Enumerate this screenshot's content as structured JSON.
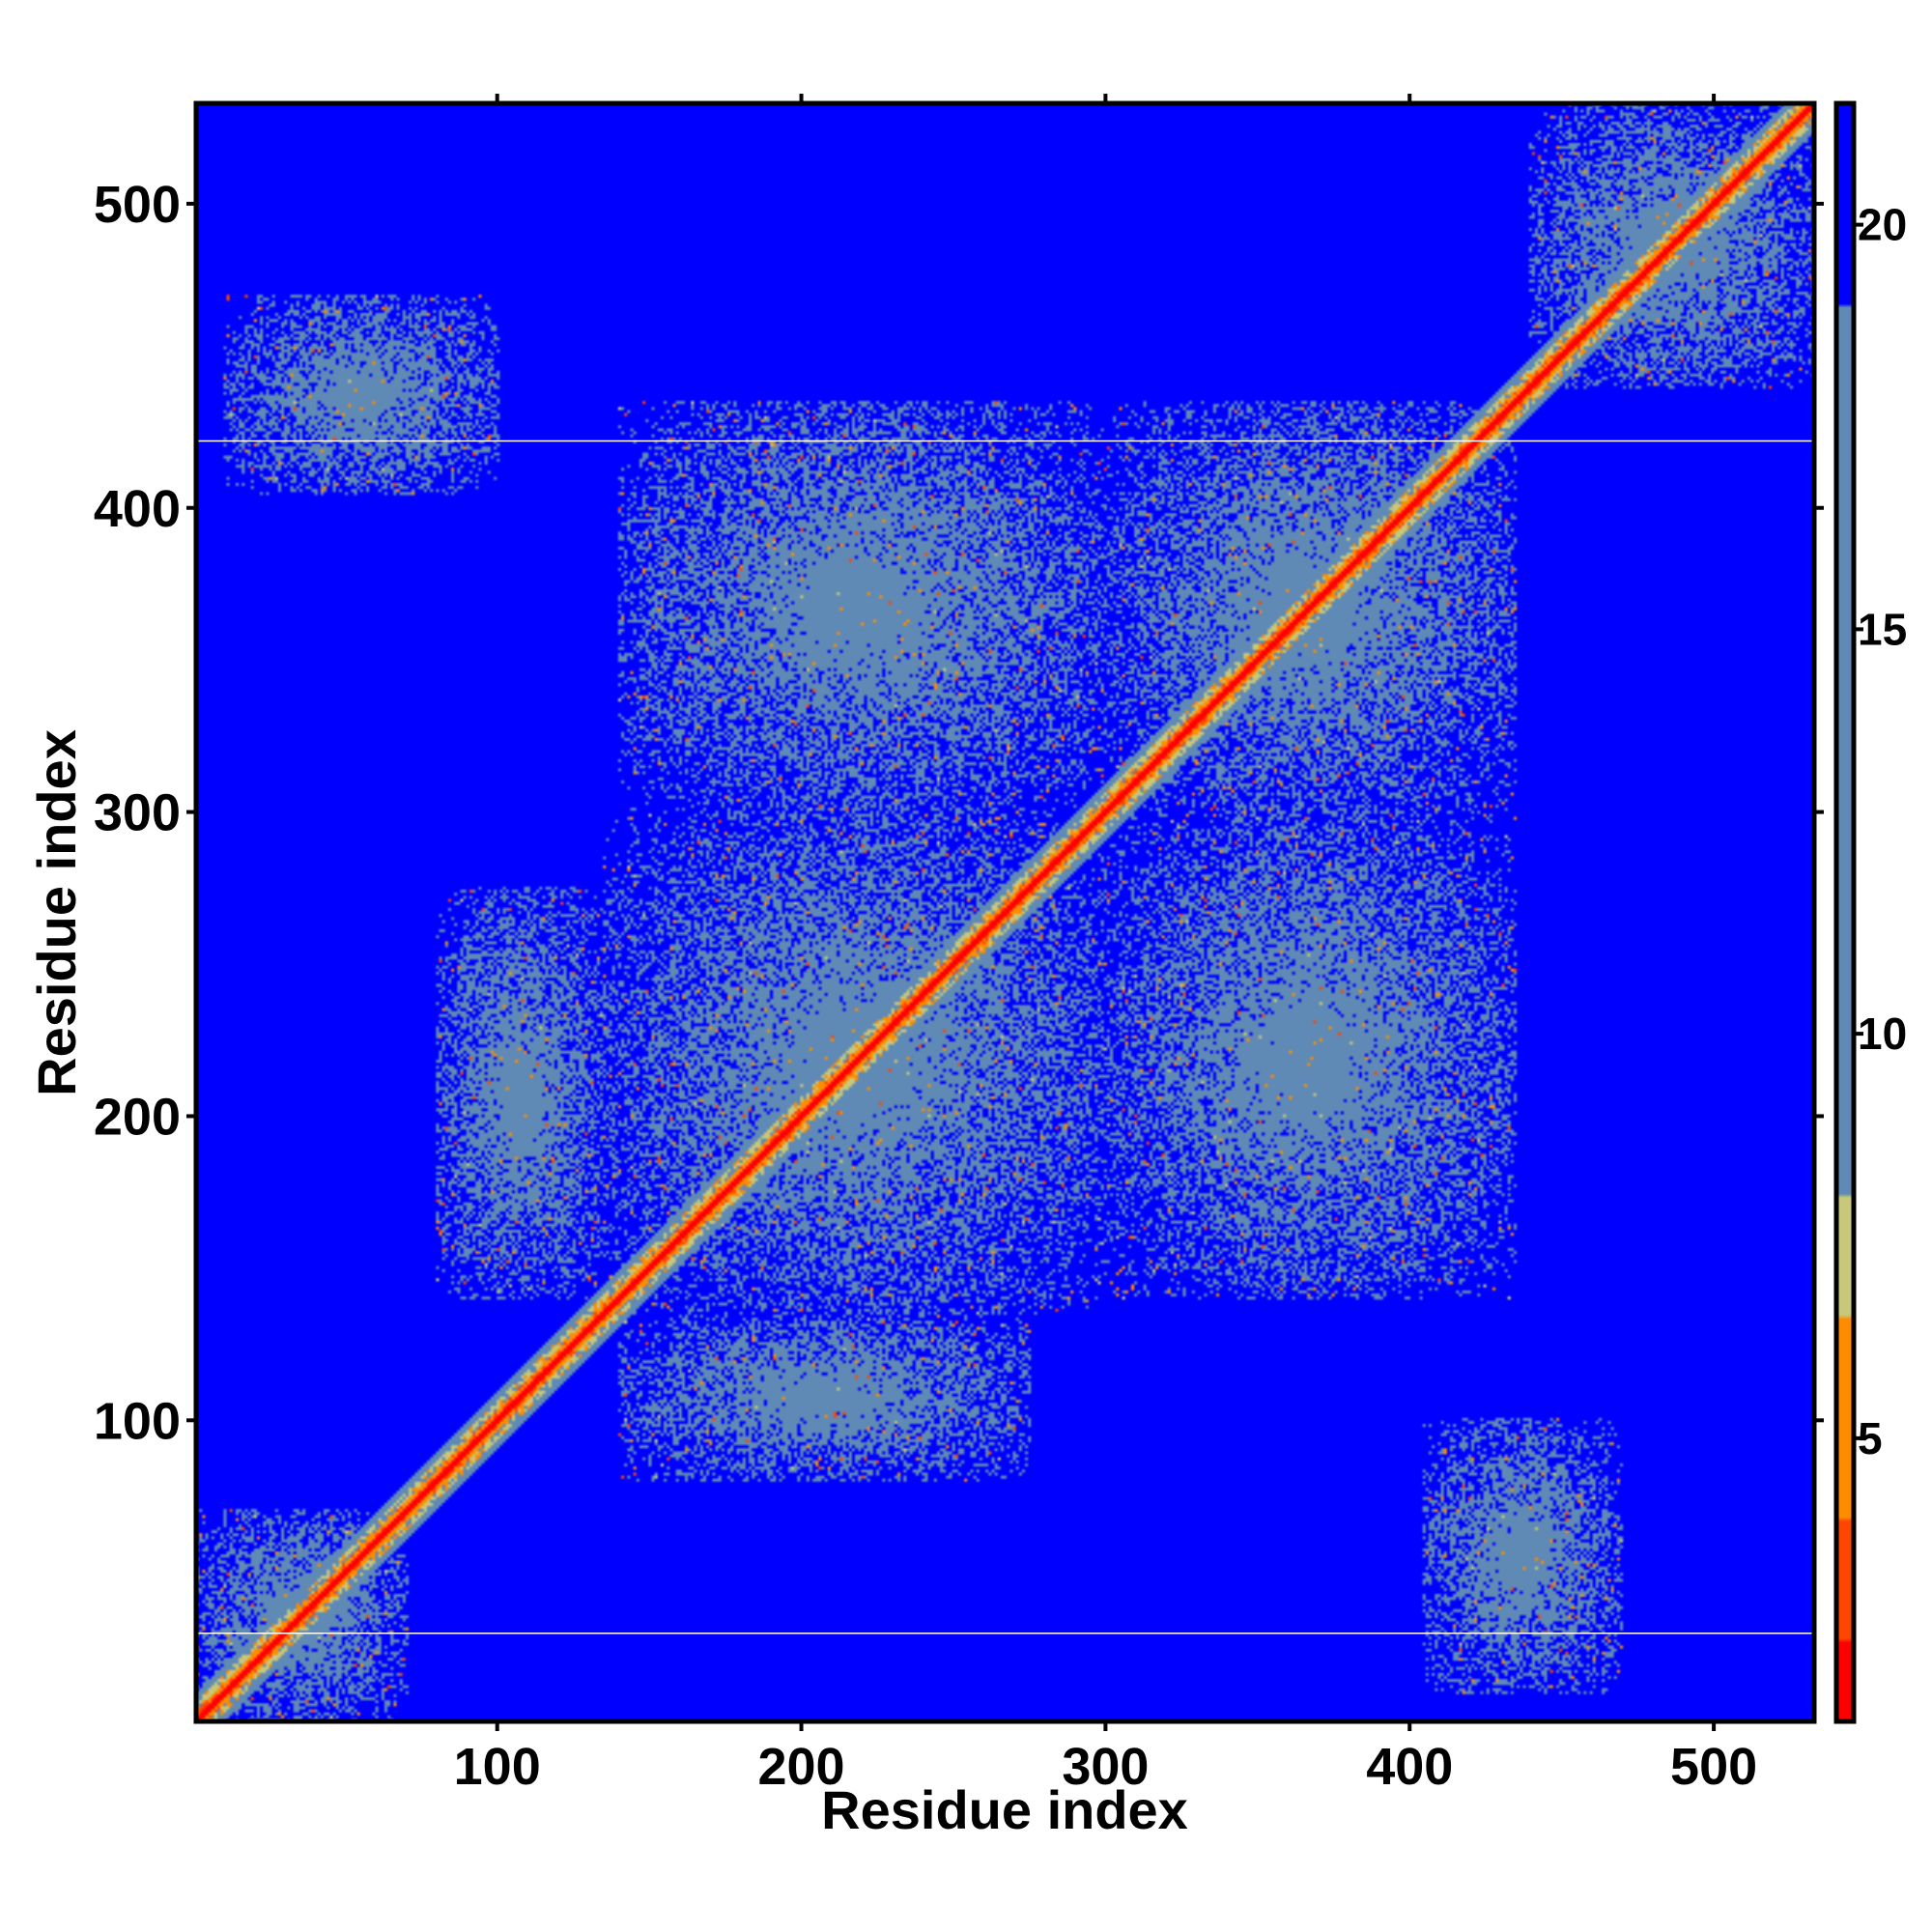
{
  "chart_data": {
    "type": "heatmap",
    "title": "",
    "xlabel": "Residue index",
    "ylabel": "Residue index",
    "n_residues": 533,
    "xlim": [
      1,
      533
    ],
    "ylim": [
      1,
      533
    ],
    "x_ticks": [
      100,
      200,
      300,
      400,
      500
    ],
    "y_ticks": [
      100,
      200,
      300,
      400,
      500
    ],
    "colorbar": {
      "range": [
        1.5,
        21.5
      ],
      "ticks": [
        5,
        10,
        15,
        20
      ],
      "colors": {
        "far": "#0000ff",
        "contact_shell": "#5f8ab5",
        "mid": "#c8c87a",
        "near": "#ff8c00",
        "closest": "#ff0000"
      },
      "band_boundaries": [
        2.5,
        4.0,
        6.5,
        8.0,
        19.0
      ]
    },
    "contact_regions": [
      {
        "x": [
          1,
          70
        ],
        "y": [
          1,
          70
        ]
      },
      {
        "x": [
          10,
          100
        ],
        "y": [
          405,
          470
        ]
      },
      {
        "x": [
          405,
          470
        ],
        "y": [
          10,
          100
        ]
      },
      {
        "x": [
          135,
          300
        ],
        "y": [
          135,
          300
        ]
      },
      {
        "x": [
          80,
          135
        ],
        "y": [
          140,
          275
        ]
      },
      {
        "x": [
          140,
          275
        ],
        "y": [
          80,
          135
        ]
      },
      {
        "x": [
          300,
          435
        ],
        "y": [
          300,
          435
        ]
      },
      {
        "x": [
          140,
          300
        ],
        "y": [
          300,
          435
        ]
      },
      {
        "x": [
          300,
          435
        ],
        "y": [
          140,
          300
        ]
      },
      {
        "x": [
          440,
          533
        ],
        "y": [
          440,
          533
        ]
      }
    ],
    "horizontal_lines_y": [
      30,
      422
    ]
  }
}
